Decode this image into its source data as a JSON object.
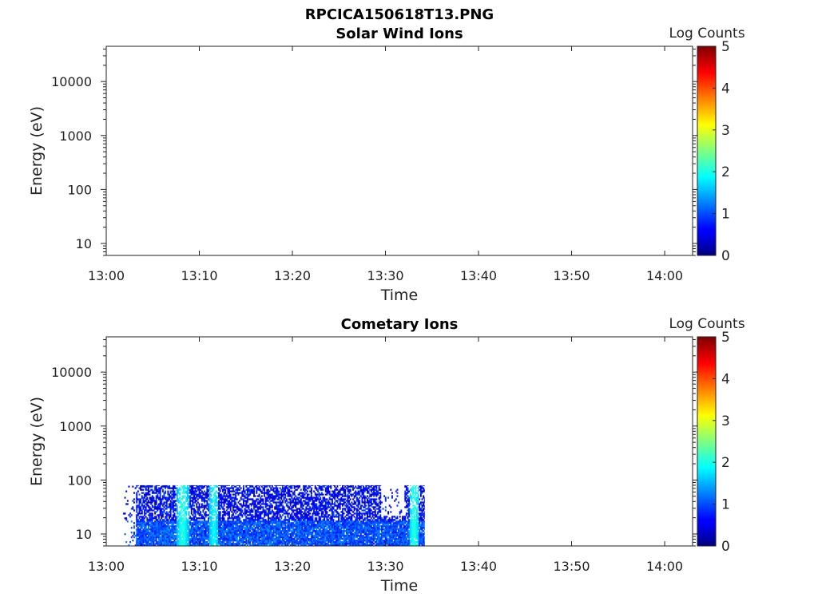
{
  "figure_title": "RPCICA150618T13.PNG",
  "chart_data": [
    {
      "type": "heatmap",
      "title": "Solar Wind Ions",
      "xlabel": "Time",
      "ylabel": "Energy (eV)",
      "x_tick_labels": [
        "13:00",
        "13:10",
        "13:20",
        "13:30",
        "13:40",
        "13:50",
        "14:00"
      ],
      "x_range_minutes": [
        0,
        63
      ],
      "y_scale": "log",
      "y_tick_values": [
        10,
        100,
        1000,
        10000
      ],
      "y_tick_labels": [
        "10",
        "100",
        "1000",
        "10000"
      ],
      "y_range": [
        6,
        45000
      ],
      "colorbar": {
        "label": "Log Counts",
        "ticks": [
          "0",
          "1",
          "2",
          "3",
          "4",
          "5"
        ],
        "range": [
          0,
          5
        ],
        "colormap": "jet"
      },
      "data_regions": []
    },
    {
      "type": "heatmap",
      "title": "Cometary Ions",
      "xlabel": "Time",
      "ylabel": "Energy (eV)",
      "x_tick_labels": [
        "13:00",
        "13:10",
        "13:20",
        "13:30",
        "13:40",
        "13:50",
        "14:00"
      ],
      "x_range_minutes": [
        0,
        63
      ],
      "y_scale": "log",
      "y_tick_values": [
        10,
        100,
        1000,
        10000
      ],
      "y_tick_labels": [
        "10",
        "100",
        "1000",
        "10000"
      ],
      "y_range": [
        6,
        45000
      ],
      "colorbar": {
        "label": "Log Counts",
        "ticks": [
          "0",
          "1",
          "2",
          "3",
          "4",
          "5"
        ],
        "range": [
          0,
          5
        ],
        "colormap": "jet"
      },
      "data_regions": [
        {
          "t_start_min": 1.8,
          "t_end_min": 34.2,
          "e_min_eV": 6,
          "e_max_eV": 80,
          "typical_log_counts": [
            0.3,
            1.0
          ]
        },
        {
          "t_start_min": 7.5,
          "t_end_min": 8.8,
          "e_min_eV": 6,
          "e_max_eV": 80,
          "typical_log_counts": [
            1.5,
            2.2
          ]
        },
        {
          "t_start_min": 11.0,
          "t_end_min": 12.0,
          "e_min_eV": 6,
          "e_max_eV": 80,
          "typical_log_counts": [
            1.5,
            2.0
          ]
        },
        {
          "t_start_min": 32.5,
          "t_end_min": 33.5,
          "e_min_eV": 6,
          "e_max_eV": 80,
          "typical_log_counts": [
            1.6,
            2.2
          ]
        }
      ]
    }
  ]
}
